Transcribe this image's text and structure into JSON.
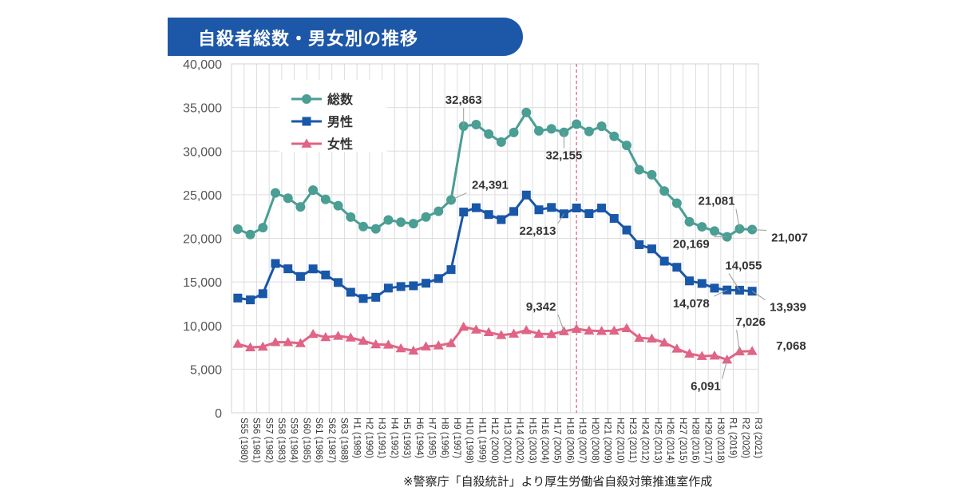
{
  "chart_data": {
    "type": "line",
    "title": "自殺者総数・男女別の推移",
    "source": "※警察庁「自殺統計」より厚生労働省自殺対策推進室作成",
    "ylim": [
      0,
      40000
    ],
    "y_ticks": [
      "0",
      "5,000",
      "10,000",
      "15,000",
      "20,000",
      "25,000",
      "30,000",
      "35,000",
      "40,000"
    ],
    "y_tick_values": [
      0,
      5000,
      10000,
      15000,
      20000,
      25000,
      30000,
      35000,
      40000
    ],
    "categories": [
      "S55 (1980)",
      "S56 (1981)",
      "S57 (1982)",
      "S58 (1983)",
      "S59 (1984)",
      "S60 (1985)",
      "S61 (1986)",
      "S62 (1987)",
      "S63 (1988)",
      "H1 (1989)",
      "H2 (1990)",
      "H3 (1991)",
      "H4 (1992)",
      "H5 (1993)",
      "H6 (1994)",
      "H7 (1995)",
      "H8 (1996)",
      "H9 (1997)",
      "H10 (1998)",
      "H11 (1999)",
      "H12 (2000)",
      "H13 (2001)",
      "H14 (2002)",
      "H15 (2003)",
      "H16 (2004)",
      "H17 (2005)",
      "H18 (2006)",
      "H19 (2007)",
      "H20 (2008)",
      "H21 (2009)",
      "H22 (2010)",
      "H23 (2011)",
      "H24 (2012)",
      "H25 (2013)",
      "H26 (2014)",
      "H27 (2015)",
      "H28 (2016)",
      "H29 (2017)",
      "H30 (2018)",
      "R1 (2019)",
      "R2 (2020)",
      "R3 (2021)"
    ],
    "series": [
      {
        "name": "総数",
        "color": "#4a9e94",
        "marker": "circle",
        "values": [
          21048,
          20434,
          21228,
          25202,
          24596,
          23599,
          25524,
          24460,
          23742,
          22436,
          21346,
          21084,
          22104,
          21851,
          21679,
          22445,
          23104,
          24391,
          32863,
          33048,
          31957,
          31042,
          32143,
          34427,
          32325,
          32552,
          32155,
          33093,
          32249,
          32845,
          31690,
          30651,
          27858,
          27283,
          25427,
          24025,
          21897,
          21321,
          20840,
          20169,
          21081,
          21007
        ]
      },
      {
        "name": "男性",
        "color": "#1957a8",
        "marker": "square",
        "values": [
          13155,
          12942,
          13654,
          17116,
          16508,
          15624,
          16497,
          15802,
          14934,
          13818,
          13102,
          13242,
          14296,
          14468,
          14560,
          14853,
          15393,
          16416,
          23013,
          23512,
          22727,
          22144,
          23080,
          24963,
          23272,
          23540,
          22813,
          23478,
          22831,
          23472,
          22283,
          20955,
          19273,
          18787,
          17386,
          16681,
          15121,
          14826,
          14290,
          14078,
          14055,
          13939
        ]
      },
      {
        "name": "女性",
        "color": "#e06485",
        "marker": "triangle",
        "values": [
          7893,
          7492,
          7574,
          8086,
          8088,
          7975,
          9027,
          8658,
          8808,
          8618,
          8244,
          7842,
          7808,
          7383,
          7119,
          7592,
          7711,
          7975,
          9850,
          9536,
          9230,
          8898,
          9063,
          9464,
          9053,
          9012,
          9342,
          9615,
          9418,
          9373,
          9407,
          9696,
          8585,
          8496,
          8041,
          7344,
          6776,
          6495,
          6550,
          6091,
          7026,
          7068
        ]
      }
    ],
    "reference_line_category": "H19 (2007)",
    "annotations": [
      {
        "text": "32,863",
        "series": 0,
        "index": 18
      },
      {
        "text": "24,391",
        "series": 0,
        "index": 17
      },
      {
        "text": "32,155",
        "series": 0,
        "index": 26
      },
      {
        "text": "22,813",
        "series": 1,
        "index": 26
      },
      {
        "text": "9,342",
        "series": 2,
        "index": 26
      },
      {
        "text": "21,081",
        "series": 0,
        "index": 40
      },
      {
        "text": "20,169",
        "series": 0,
        "index": 39
      },
      {
        "text": "21,007",
        "series": 0,
        "index": 41
      },
      {
        "text": "14,055",
        "series": 1,
        "index": 40
      },
      {
        "text": "14,078",
        "series": 1,
        "index": 39
      },
      {
        "text": "13,939",
        "series": 1,
        "index": 41
      },
      {
        "text": "7,026",
        "series": 2,
        "index": 40
      },
      {
        "text": "6,091",
        "series": 2,
        "index": 39
      },
      {
        "text": "7,068",
        "series": 2,
        "index": 41
      }
    ],
    "legend_position": "top-left"
  }
}
